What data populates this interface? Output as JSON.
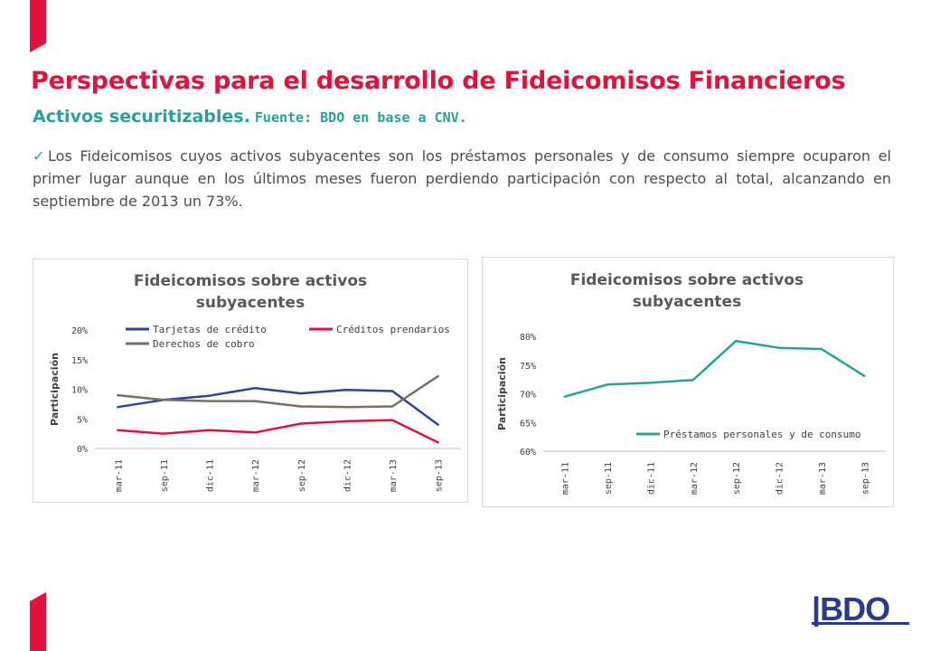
{
  "header": {
    "title": "Perspectivas para el desarrollo de Fideicomisos Financieros",
    "subtitle": "Activos securitizables.",
    "source": "Fuente: BDO en base a CNV."
  },
  "body": {
    "bullet_text": "Los Fideicomisos cuyos activos subyacentes son los préstamos personales y de consumo siempre ocuparon el primer lugar aunque en los últimos meses fueron perdiendo participación con respecto al total, alcanzando en septiembre de 2013 un 73%."
  },
  "brand": {
    "accent": "#e2123e",
    "teal": "#2aa198",
    "logo_blue": "#2b3a8f"
  },
  "chart_data": [
    {
      "type": "line",
      "title": "Fideicomisos sobre activos subyacentes",
      "ylabel": "Participación",
      "ylim": [
        0,
        20
      ],
      "y_ticks": [
        "0%",
        "5%",
        "10%",
        "15%",
        "20%"
      ],
      "legend_position": "top",
      "x_ticks": [
        "mar-11",
        "sep-11",
        "dic-11",
        "mar-12",
        "sep-12",
        "dic-12",
        "mar-13",
        "sep-13"
      ],
      "series": [
        {
          "name": "Tarjetas de crédito",
          "color": "#2e4593",
          "values": [
            7.0,
            8.2,
            8.9,
            10.2,
            9.3,
            9.9,
            9.7,
            4.0
          ]
        },
        {
          "name": "Créditos prendarios",
          "color": "#e2123e",
          "values": [
            3.1,
            2.5,
            3.1,
            2.7,
            4.2,
            4.6,
            4.8,
            1.0
          ]
        },
        {
          "name": "Derechos de cobro",
          "color": "#7a6e69",
          "values": [
            9.0,
            8.2,
            8.0,
            8.0,
            7.1,
            7.0,
            7.1,
            12.2
          ]
        }
      ]
    },
    {
      "type": "line",
      "title": "Fideicomisos sobre activos subyacentes",
      "ylabel": "Participación",
      "ylim": [
        60,
        80
      ],
      "y_ticks": [
        "60%",
        "65%",
        "70%",
        "75%",
        "80%"
      ],
      "legend_position": "bottom-right",
      "x_ticks": [
        "mar-11",
        "sep-11",
        "dic-11",
        "mar-12",
        "sep-12",
        "dic-12",
        "mar-13",
        "sep-13"
      ],
      "series": [
        {
          "name": "Préstamos personales y de consumo",
          "color": "#2aa198",
          "values": [
            69.5,
            71.6,
            71.9,
            72.4,
            79.2,
            78.0,
            77.8,
            73.1
          ]
        }
      ]
    }
  ]
}
